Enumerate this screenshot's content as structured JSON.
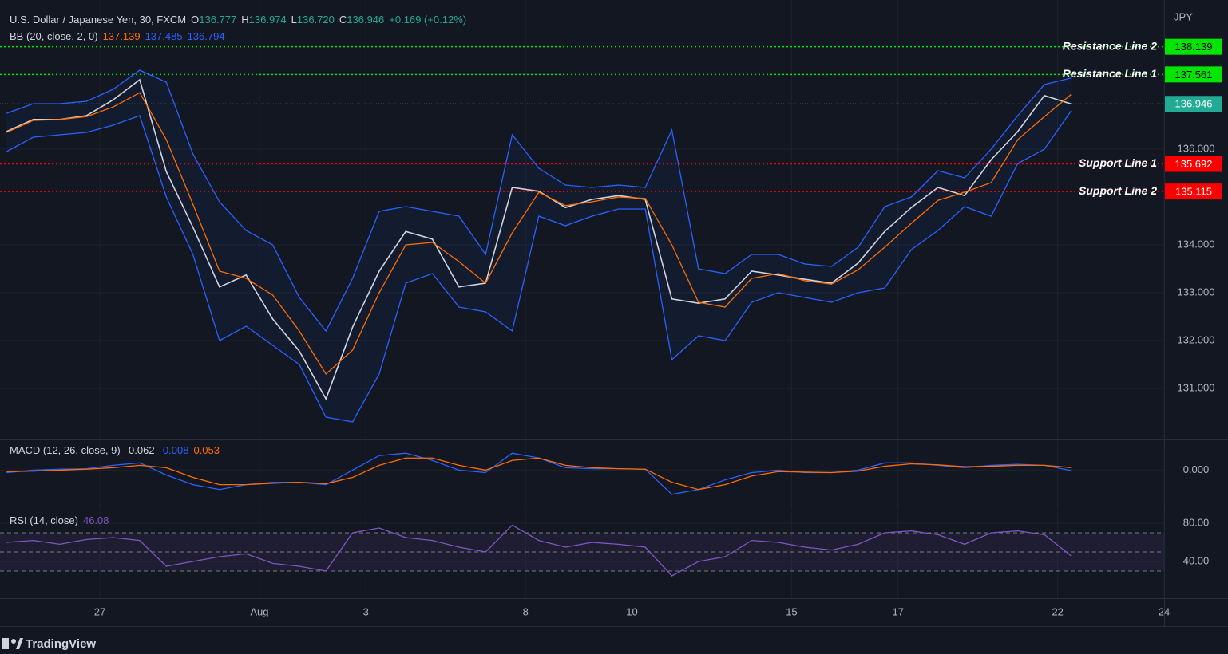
{
  "chart_data": [
    {
      "type": "line",
      "title": "U.S. Dollar / Japanese Yen, 30, FXCM",
      "ohlc": [
        {
          "label": "O",
          "value": "136.777"
        },
        {
          "label": "H",
          "value": "136.974"
        },
        {
          "label": "L",
          "value": "136.720"
        },
        {
          "label": "C",
          "value": "136.946"
        }
      ],
      "change": "+0.169 (+0.12%)",
      "indicator": {
        "name": "BB (20, close, 2, 0)",
        "values": [
          "137.139",
          "137.485",
          "136.794"
        ],
        "colors": [
          "#ff6d00",
          "#2962ff",
          "#2962ff"
        ]
      },
      "axis_unit": "JPY",
      "x": [
        -1.75,
        -1.25,
        -0.75,
        -0.25,
        0.25,
        0.75,
        1.25,
        1.75,
        2.25,
        2.75,
        3.25,
        3.75,
        4.25,
        4.75,
        5.25,
        5.75,
        6.25,
        6.75,
        7.25,
        7.75,
        8.25,
        8.75,
        9.25,
        9.75,
        10.25,
        10.75,
        11.25,
        11.75,
        12.25,
        12.75,
        13.25,
        13.75,
        14.25,
        14.75,
        15.25,
        15.75,
        16.25,
        16.75,
        17.25,
        17.75,
        18.25
      ],
      "xlim": [
        -1.875,
        20
      ],
      "xticks": [
        {
          "value": 0,
          "label": "27"
        },
        {
          "value": 3,
          "label": "Aug"
        },
        {
          "value": 5,
          "label": "3"
        },
        {
          "value": 8,
          "label": "8"
        },
        {
          "value": 10,
          "label": "10"
        },
        {
          "value": 13,
          "label": "15"
        },
        {
          "value": 15,
          "label": "17"
        },
        {
          "value": 18,
          "label": "22"
        },
        {
          "value": 20,
          "label": "24"
        }
      ],
      "ylim": [
        129.95,
        139.117
      ],
      "yticks": [
        {
          "value": 136,
          "label": "136.000"
        },
        {
          "value": 134,
          "label": "134.000"
        },
        {
          "value": 133,
          "label": "133.000"
        },
        {
          "value": 132,
          "label": "132.000"
        },
        {
          "value": 131,
          "label": "131.000"
        }
      ],
      "series": [
        {
          "color": "#d1d4dc",
          "values": [
            136.37,
            136.62,
            136.62,
            136.7,
            137.03,
            137.45,
            135.53,
            134.37,
            133.12,
            133.37,
            132.45,
            131.78,
            130.78,
            132.28,
            133.45,
            134.28,
            134.12,
            133.12,
            133.2,
            135.2,
            135.12,
            134.78,
            134.95,
            135.03,
            134.95,
            132.87,
            132.78,
            132.87,
            133.45,
            133.37,
            133.28,
            133.2,
            133.62,
            134.28,
            134.78,
            135.2,
            135.03,
            135.78,
            136.37,
            137.12,
            136.946
          ]
        },
        {
          "color": "#ff6d00",
          "values": [
            136.35,
            136.6,
            136.62,
            136.68,
            136.88,
            137.18,
            136.2,
            134.85,
            133.45,
            133.3,
            132.95,
            132.2,
            131.3,
            131.8,
            133.0,
            134.0,
            134.05,
            133.65,
            133.2,
            134.25,
            135.1,
            134.82,
            134.9,
            135.0,
            134.97,
            134.0,
            132.8,
            132.7,
            133.3,
            133.4,
            133.25,
            133.18,
            133.48,
            133.95,
            134.45,
            134.93,
            135.1,
            135.3,
            136.2,
            136.68,
            137.139
          ]
        },
        {
          "color": "#2962ff",
          "values": [
            136.75,
            136.95,
            136.95,
            137.0,
            137.25,
            137.65,
            137.4,
            135.9,
            134.9,
            134.3,
            134.0,
            132.9,
            132.2,
            133.3,
            134.7,
            134.8,
            134.7,
            134.6,
            133.8,
            136.3,
            135.6,
            135.25,
            135.2,
            135.25,
            135.2,
            136.4,
            133.5,
            133.4,
            133.8,
            133.8,
            133.6,
            133.55,
            133.95,
            134.8,
            135.0,
            135.55,
            135.4,
            136.0,
            136.7,
            137.35,
            137.485
          ]
        },
        {
          "color": "#2962ff",
          "values": [
            135.95,
            136.25,
            136.3,
            136.35,
            136.5,
            136.7,
            135.0,
            133.8,
            132.0,
            132.3,
            131.9,
            131.5,
            130.4,
            130.3,
            131.3,
            133.2,
            133.4,
            132.7,
            132.6,
            132.2,
            134.6,
            134.4,
            134.6,
            134.75,
            134.75,
            131.6,
            132.1,
            132.0,
            132.8,
            133.0,
            132.9,
            132.8,
            133.0,
            133.1,
            133.9,
            134.3,
            134.8,
            134.6,
            135.7,
            136.0,
            136.794
          ]
        }
      ],
      "levels": [
        {
          "name": "Resistance Line 2",
          "value": 138.139,
          "color": "#00e600"
        },
        {
          "name": "Resistance Line 1",
          "value": 137.561,
          "color": "#00e600"
        },
        {
          "name": "Support Line 1",
          "value": 135.692,
          "color": "#ff0000"
        },
        {
          "name": "Support Line 2",
          "value": 135.115,
          "color": "#ff0000"
        }
      ],
      "last_price": 136.946
    },
    {
      "type": "line",
      "title": "MACD (12, 26, close, 9)",
      "legend_values": [
        "-0.062",
        "-0.008",
        "0.053"
      ],
      "legend_colors": [
        "#d1d4dc",
        "#2962ff",
        "#ff6d00"
      ],
      "ylim": [
        -0.8,
        0.6
      ],
      "yticks": [
        {
          "value": 0,
          "label": "0.000"
        }
      ],
      "series": [
        {
          "color": "#2962ff",
          "values": [
            -0.05,
            0.0,
            0.02,
            0.03,
            0.1,
            0.15,
            -0.1,
            -0.3,
            -0.4,
            -0.3,
            -0.25,
            -0.25,
            -0.3,
            0.0,
            0.3,
            0.35,
            0.2,
            0.0,
            -0.05,
            0.35,
            0.25,
            0.05,
            0.03,
            0.03,
            0.02,
            -0.5,
            -0.4,
            -0.2,
            -0.05,
            0.0,
            -0.05,
            -0.05,
            0.0,
            0.15,
            0.15,
            0.1,
            0.05,
            0.1,
            0.12,
            0.1,
            -0.008
          ]
        },
        {
          "color": "#ff6d00",
          "values": [
            -0.03,
            -0.02,
            0.0,
            0.02,
            0.05,
            0.1,
            0.05,
            -0.15,
            -0.3,
            -0.3,
            -0.27,
            -0.25,
            -0.28,
            -0.15,
            0.1,
            0.25,
            0.25,
            0.1,
            0.0,
            0.2,
            0.25,
            0.1,
            0.05,
            0.03,
            0.02,
            -0.25,
            -0.4,
            -0.3,
            -0.12,
            -0.03,
            -0.04,
            -0.05,
            -0.02,
            0.08,
            0.13,
            0.11,
            0.07,
            0.08,
            0.1,
            0.1,
            0.053
          ]
        }
      ]
    },
    {
      "type": "line",
      "title": "RSI (14, close)",
      "legend_values": [
        "46.08"
      ],
      "legend_colors": [
        "#7e57c2"
      ],
      "ylim": [
        1.67,
        92.5
      ],
      "yticks": [
        {
          "value": 80,
          "label": "80.00"
        },
        {
          "value": 40,
          "label": "40.00"
        }
      ],
      "band_levels": [
        30,
        50,
        70
      ],
      "series": [
        {
          "color": "#7e57c2",
          "values": [
            60,
            62,
            58,
            63,
            65,
            62,
            35,
            40,
            45,
            48,
            38,
            35,
            30,
            70,
            75,
            65,
            62,
            55,
            50,
            78,
            62,
            55,
            60,
            58,
            55,
            25,
            40,
            45,
            62,
            60,
            55,
            52,
            58,
            70,
            72,
            68,
            58,
            70,
            72,
            68,
            46.08
          ]
        }
      ]
    }
  ],
  "footer": {
    "brand": "TradingView"
  }
}
